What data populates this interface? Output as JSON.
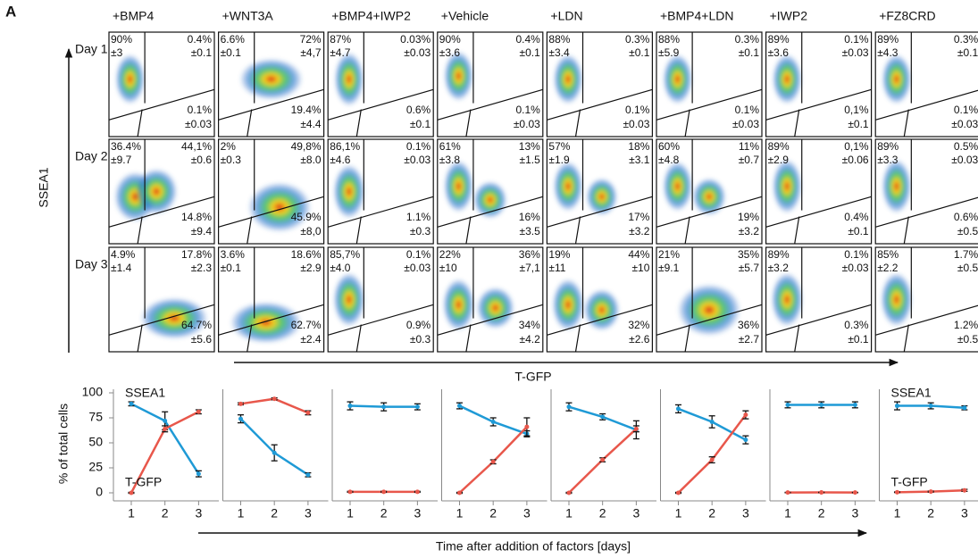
{
  "panel_label": "A",
  "conditions": [
    "+BMP4",
    "+WNT3A",
    "+BMP4+IWP2",
    "+Vehicle",
    "+LDN",
    "+BMP4+LDN",
    "+IWP2",
    "+FZ8CRD"
  ],
  "flow": {
    "y_label": "SSEA1",
    "x_label": "T-GFP",
    "rows": [
      {
        "day": "Day 1",
        "cells": [
          [
            "90%",
            "±3",
            "0.4%",
            "±0.1",
            "0.1%",
            "±0.03"
          ],
          [
            "6.6%",
            "±0.1",
            "72%",
            "±4,7",
            "19.4%",
            "±4.4"
          ],
          [
            "87%",
            "±4.7",
            "0.03%",
            "±0.03",
            "0.6%",
            "±0.1"
          ],
          [
            "90%",
            "±3.6",
            "0.4%",
            "±0.1",
            "0.1%",
            "±0.03"
          ],
          [
            "88%",
            "±3.4",
            "0.3%",
            "±0.1",
            "0.1%",
            "±0.03"
          ],
          [
            "88%",
            "±5.9",
            "0.3%",
            "±0.1",
            "0.1%",
            "±0.03"
          ],
          [
            "89%",
            "±3.6",
            "0.1%",
            "±0.03",
            "0,1%",
            "±0.1"
          ],
          [
            "89%",
            "±4.3",
            "0.3%",
            "±0.1",
            "0.1%",
            "±0.03"
          ]
        ]
      },
      {
        "day": "Day 2",
        "cells": [
          [
            "36.4%",
            "±9.7",
            "44,1%",
            "±0.6",
            "14.8%",
            "±9.4"
          ],
          [
            "2%",
            "±0.3",
            "49,8%",
            "±8.0",
            "45.9%",
            "±8,0"
          ],
          [
            "86,1%",
            "±4.6",
            "0.1%",
            "±0.03",
            "1.1%",
            "±0.3"
          ],
          [
            "61%",
            "±3.8",
            "13%",
            "±1.5",
            "16%",
            "±3.5"
          ],
          [
            "57%",
            "±1.9",
            "18%",
            "±3.1",
            "17%",
            "±3.2"
          ],
          [
            "60%",
            "±4.8",
            "11%",
            "±0.7",
            "19%",
            "±3.2"
          ],
          [
            "89%",
            "±2.9",
            "0,1%",
            "±0.06",
            "0.4%",
            "±0.1"
          ],
          [
            "89%",
            "±3.3",
            "0.5%",
            "±0.03",
            "0.6%",
            "±0.5"
          ]
        ]
      },
      {
        "day": "Day 3",
        "cells": [
          [
            "4.9%",
            "±1.4",
            "17.8%",
            "±2.3",
            "64.7%",
            "±5.6"
          ],
          [
            "3.6%",
            "±0.1",
            "18.6%",
            "±2.9",
            "62.7%",
            "±2.4"
          ],
          [
            "85,7%",
            "±4.0",
            "0.1%",
            "±0.03",
            "0.9%",
            "±0.3"
          ],
          [
            "22%",
            "±10",
            "36%",
            "±7,1",
            "34%",
            "±4.2"
          ],
          [
            "19%",
            "±11",
            "44%",
            "±10",
            "32%",
            "±2.6"
          ],
          [
            "21%",
            "±9.1",
            "35%",
            "±5.7",
            "36%",
            "±2.7"
          ],
          [
            "89%",
            "±3.2",
            "0.1%",
            "±0.03",
            "0.3%",
            "±0.1"
          ],
          [
            "85%",
            "±2.2",
            "1.7%",
            "±0.5",
            "1.2%",
            "±0.5"
          ]
        ]
      }
    ]
  },
  "time_label": "Time after addition of factors [days]",
  "chart_data": [
    {
      "type": "line",
      "ylabel": "% of total cells",
      "ylim": [
        0,
        100
      ],
      "yticks": [
        0,
        25,
        50,
        75,
        100
      ],
      "x": [
        1,
        2,
        3
      ],
      "xlim": [
        0.47,
        3.6
      ],
      "xticks": [
        1,
        2,
        3
      ],
      "series": [
        {
          "name": "SSEA1",
          "color": "#1f9ad6",
          "values": [
            89,
            72,
            19
          ],
          "errors": [
            2,
            9,
            3
          ]
        },
        {
          "name": "T-GFP",
          "color": "#e8574b",
          "values": [
            0,
            64,
            81
          ],
          "errors": [
            0.5,
            3,
            2
          ]
        }
      ]
    },
    {
      "type": "line",
      "x": [
        1,
        2,
        3
      ],
      "xlim": [
        0.47,
        3.6
      ],
      "xticks": [
        1,
        2,
        3
      ],
      "series": [
        {
          "color": "#1f9ad6",
          "values": [
            74,
            40,
            18
          ],
          "errors": [
            4,
            8,
            2
          ]
        },
        {
          "color": "#e8574b",
          "values": [
            89,
            94,
            80
          ],
          "errors": [
            1,
            1,
            2
          ]
        }
      ]
    },
    {
      "type": "line",
      "x": [
        1,
        2,
        3
      ],
      "xlim": [
        0.47,
        3.6
      ],
      "xticks": [
        1,
        2,
        3
      ],
      "series": [
        {
          "color": "#1f9ad6",
          "values": [
            87,
            86,
            86
          ],
          "errors": [
            4,
            4,
            3
          ]
        },
        {
          "color": "#e8574b",
          "values": [
            1,
            1,
            1
          ],
          "errors": [
            0.5,
            0.5,
            0.5
          ]
        }
      ]
    },
    {
      "type": "line",
      "x": [
        1,
        2,
        3
      ],
      "xlim": [
        0.47,
        3.6
      ],
      "xticks": [
        1,
        2,
        3
      ],
      "series": [
        {
          "color": "#1f9ad6",
          "values": [
            87,
            71,
            59
          ],
          "errors": [
            3,
            4,
            3
          ]
        },
        {
          "color": "#e8574b",
          "values": [
            0,
            31,
            66
          ],
          "errors": [
            0.5,
            2,
            9
          ]
        }
      ]
    },
    {
      "type": "line",
      "x": [
        1,
        2,
        3
      ],
      "xlim": [
        0.47,
        3.6
      ],
      "xticks": [
        1,
        2,
        3
      ],
      "series": [
        {
          "color": "#1f9ad6",
          "values": [
            86,
            76,
            63
          ],
          "errors": [
            4,
            3,
            9
          ]
        },
        {
          "color": "#e8574b",
          "values": [
            0,
            33,
            64
          ],
          "errors": [
            0.5,
            2,
            3
          ]
        }
      ]
    },
    {
      "type": "line",
      "x": [
        1,
        2,
        3
      ],
      "xlim": [
        0.47,
        3.6
      ],
      "xticks": [
        1,
        2,
        3
      ],
      "series": [
        {
          "color": "#1f9ad6",
          "values": [
            84,
            71,
            53
          ],
          "errors": [
            4,
            6,
            4
          ]
        },
        {
          "color": "#e8574b",
          "values": [
            0,
            33,
            78
          ],
          "errors": [
            0.5,
            3,
            4
          ]
        }
      ]
    },
    {
      "type": "line",
      "x": [
        1,
        2,
        3
      ],
      "xlim": [
        0.47,
        3.6
      ],
      "xticks": [
        1,
        2,
        3
      ],
      "series": [
        {
          "color": "#1f9ad6",
          "values": [
            88,
            88,
            88
          ],
          "errors": [
            3,
            3,
            3
          ]
        },
        {
          "color": "#e8574b",
          "values": [
            0.3,
            0.4,
            0.3
          ],
          "errors": [
            0.2,
            0.2,
            0.2
          ]
        }
      ]
    },
    {
      "type": "line",
      "x": [
        1,
        2,
        3
      ],
      "xlim": [
        0.47,
        3.6
      ],
      "xticks": [
        1,
        2,
        3
      ],
      "series": [
        {
          "name": "SSEA1",
          "color": "#1f9ad6",
          "values": [
            87,
            87,
            85
          ],
          "errors": [
            4,
            3,
            2
          ]
        },
        {
          "name": "T-GFP",
          "color": "#e8574b",
          "values": [
            0.6,
            1.2,
            2.5
          ],
          "errors": [
            0.3,
            0.5,
            1
          ]
        }
      ]
    }
  ]
}
